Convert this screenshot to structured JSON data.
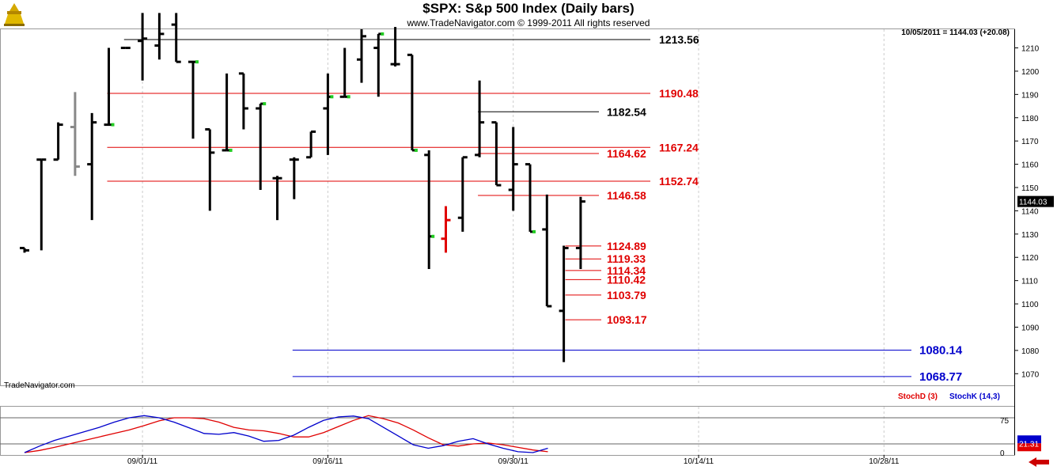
{
  "header": {
    "title": "$SPX:  S&p 500 Index  (Daily bars)",
    "copyright": "www.TradeNavigator.com © 1999-2011 All rights reserved",
    "last_readout": "10/05/2011 = 1144.03 (+20.08)",
    "watermark": "TradeNavigator.com"
  },
  "colors": {
    "bar": "#000000",
    "bar_gray": "#888888",
    "bar_red": "#e00000",
    "green_mark": "#22cc22",
    "level_red": "#e00000",
    "level_black": "#000000",
    "level_blue": "#0000cc",
    "stochD": "#e00000",
    "stochK": "#0000cc",
    "grid": "#cccccc",
    "nav_arrow": "#cc0000"
  },
  "chart_data": [
    {
      "type": "ohlc",
      "title": "$SPX:  S&p 500 Index  (Daily bars)",
      "ylim": [
        1065,
        1218
      ],
      "y_ticks": [
        1070,
        1080,
        1090,
        1100,
        1110,
        1120,
        1130,
        1140,
        1150,
        1160,
        1170,
        1180,
        1190,
        1200,
        1210
      ],
      "x_tick_labels": [
        "09/01/11",
        "09/16/11",
        "09/30/11",
        "10/14/11",
        "10/28/11"
      ],
      "x_tick_index": [
        7,
        18,
        29,
        40,
        51
      ],
      "last_price_label": "1144.03",
      "series": [
        {
          "o": 1124,
          "h": 1124,
          "l": 1122,
          "c": 1123,
          "color": "black"
        },
        {
          "o": 1162,
          "h": 1162,
          "l": 1123,
          "c": 1162,
          "color": "black"
        },
        {
          "o": 1162,
          "h": 1178,
          "l": 1162,
          "c": 1177,
          "color": "black"
        },
        {
          "o": 1176,
          "h": 1191,
          "l": 1155,
          "c": 1159,
          "color": "gray"
        },
        {
          "o": 1160,
          "h": 1182,
          "l": 1136,
          "c": 1178,
          "color": "black"
        },
        {
          "o": 1177,
          "h": 1210,
          "l": 1177,
          "c": 1177,
          "color": "black",
          "green": true
        },
        {
          "o": 1210,
          "h": 1210,
          "l": 1210,
          "c": 1210,
          "color": "black"
        },
        {
          "o": 1213,
          "h": 1225,
          "l": 1196,
          "c": 1214,
          "color": "black"
        },
        {
          "o": 1211,
          "h": 1225,
          "l": 1205,
          "c": 1216,
          "color": "black"
        },
        {
          "o": 1220,
          "h": 1225,
          "l": 1204,
          "c": 1204,
          "color": "black"
        },
        {
          "o": 1204,
          "h": 1204,
          "l": 1171,
          "c": 1204,
          "color": "black",
          "green": true
        },
        {
          "o": 1175,
          "h": 1175,
          "l": 1140,
          "c": 1165,
          "color": "black"
        },
        {
          "o": 1166,
          "h": 1199,
          "l": 1166,
          "c": 1166,
          "color": "black",
          "green": true
        },
        {
          "o": 1199,
          "h": 1199,
          "l": 1175,
          "c": 1184,
          "color": "black"
        },
        {
          "o": 1184,
          "h": 1186,
          "l": 1149,
          "c": 1186,
          "color": "black",
          "green": true
        },
        {
          "o": 1154,
          "h": 1155,
          "l": 1136,
          "c": 1154,
          "color": "black"
        },
        {
          "o": 1162,
          "h": 1163,
          "l": 1145,
          "c": 1162,
          "color": "black"
        },
        {
          "o": 1163,
          "h": 1174,
          "l": 1163,
          "c": 1174,
          "color": "black"
        },
        {
          "o": 1184,
          "h": 1199,
          "l": 1164,
          "c": 1189,
          "color": "black",
          "green": true
        },
        {
          "o": 1189,
          "h": 1210,
          "l": 1189,
          "c": 1189,
          "color": "black",
          "green": true
        },
        {
          "o": 1205,
          "h": 1218,
          "l": 1195,
          "c": 1215,
          "color": "black"
        },
        {
          "o": 1210,
          "h": 1216,
          "l": 1189,
          "c": 1216,
          "color": "black",
          "green": true
        },
        {
          "o": 1203,
          "h": 1219,
          "l": 1202,
          "c": 1203,
          "color": "black"
        },
        {
          "o": 1207,
          "h": 1207,
          "l": 1166,
          "c": 1166,
          "color": "black",
          "green": true
        },
        {
          "o": 1164,
          "h": 1166,
          "l": 1115,
          "c": 1129,
          "color": "black",
          "green": true
        },
        {
          "o": 1128,
          "h": 1142,
          "l": 1122,
          "c": 1136,
          "color": "red"
        },
        {
          "o": 1137,
          "h": 1163,
          "l": 1131,
          "c": 1163,
          "color": "black"
        },
        {
          "o": 1164,
          "h": 1196,
          "l": 1163,
          "c": 1178,
          "color": "black"
        },
        {
          "o": 1178,
          "h": 1178,
          "l": 1151,
          "c": 1151,
          "color": "black"
        },
        {
          "o": 1149,
          "h": 1176,
          "l": 1140,
          "c": 1160,
          "color": "black"
        },
        {
          "o": 1160,
          "h": 1160,
          "l": 1131,
          "c": 1131,
          "color": "black",
          "green": true
        },
        {
          "o": 1132,
          "h": 1147,
          "l": 1099,
          "c": 1099,
          "color": "black"
        },
        {
          "o": 1097,
          "h": 1125,
          "l": 1075,
          "c": 1124,
          "color": "black"
        },
        {
          "o": 1124,
          "h": 1146,
          "l": 1115,
          "c": 1144,
          "color": "black"
        }
      ],
      "levels": [
        {
          "value": 1213.56,
          "label": "1213.56",
          "color": "black",
          "from": 6,
          "to": 33.5
        },
        {
          "value": 1190.48,
          "label": "1190.48",
          "color": "red",
          "from": 5,
          "to": 33.5
        },
        {
          "value": 1182.54,
          "label": "1182.54",
          "color": "black",
          "from": 27,
          "to": 31
        },
        {
          "value": 1167.24,
          "label": "1167.24",
          "color": "red",
          "from": 5,
          "to": 33.5
        },
        {
          "value": 1164.62,
          "label": "1164.62",
          "color": "red",
          "from": 27,
          "to": 31
        },
        {
          "value": 1152.74,
          "label": "1152.74",
          "color": "red",
          "from": 5,
          "to": 33.5
        },
        {
          "value": 1146.58,
          "label": "1146.58",
          "color": "red",
          "from": 27,
          "to": 31
        },
        {
          "value": 1124.89,
          "label": "1124.89",
          "color": "red",
          "from": 32,
          "to": 31
        },
        {
          "value": 1119.33,
          "label": "1119.33",
          "color": "red",
          "from": 32,
          "to": 31
        },
        {
          "value": 1114.34,
          "label": "1114.34",
          "color": "red",
          "from": 32,
          "to": 31
        },
        {
          "value": 1110.42,
          "label": "1110.42",
          "color": "red",
          "from": 32,
          "to": 31
        },
        {
          "value": 1103.79,
          "label": "1103.79",
          "color": "red",
          "from": 32,
          "to": 31
        },
        {
          "value": 1093.17,
          "label": "1093.17",
          "color": "red",
          "from": 32,
          "to": 31
        },
        {
          "value": 1080.14,
          "label": "1080.14",
          "color": "blue",
          "from": 16,
          "to": 52
        },
        {
          "value": 1068.77,
          "label": "1068.77",
          "color": "blue",
          "from": 16,
          "to": 52
        }
      ]
    },
    {
      "type": "line",
      "ylim": [
        0,
        100
      ],
      "y_ticks": [
        0,
        75
      ],
      "ref_lines": [
        20,
        80
      ],
      "legend": [
        {
          "name": "StochD (3)",
          "color": "red"
        },
        {
          "name": "StochK (14,3)",
          "color": "blue"
        }
      ],
      "last_value_label": "21.31",
      "series": [
        {
          "name": "StochD (3)",
          "values": [
            0,
            5,
            12,
            20,
            28,
            36,
            44,
            52,
            62,
            73,
            80,
            80,
            78,
            70,
            58,
            52,
            50,
            44,
            36,
            36,
            46,
            60,
            74,
            85,
            78,
            68,
            52,
            34,
            18,
            15,
            20,
            22,
            18,
            12,
            6,
            2
          ]
        },
        {
          "name": "StochK (14,3)",
          "values": [
            0,
            15,
            28,
            38,
            48,
            58,
            70,
            80,
            85,
            80,
            70,
            57,
            44,
            42,
            46,
            38,
            26,
            28,
            40,
            58,
            74,
            82,
            84,
            78,
            58,
            38,
            18,
            10,
            16,
            26,
            32,
            20,
            10,
            2,
            0,
            10
          ]
        }
      ]
    }
  ]
}
